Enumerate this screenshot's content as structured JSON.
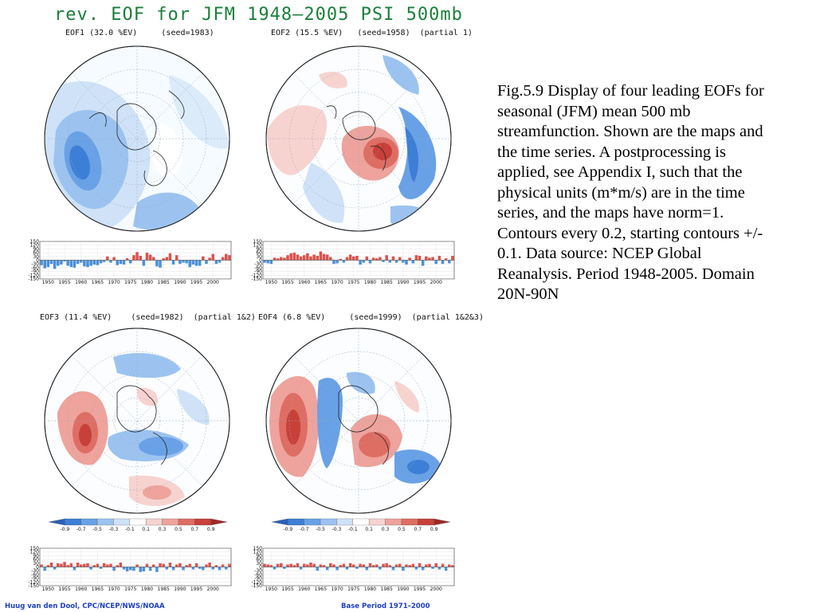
{
  "title": "rev. EOF for JFM 1948–2005 PSI 500mb",
  "caption": "Fig.5.9 Display of  four leading EOFs for seasonal (JFM) mean 500 mb streamfunction. Shown are the maps and the time series. A postprocessing is applied, see Appendix I, such that the physical units (m*m/s) are in the time series, and the maps have norm=1. Contours every 0.2, starting contours +/- 0.1. Data source: NCEP Global Reanalysis. Period 1948-2005. Domain 20N-90N",
  "footer": {
    "left": "Huug van den Dool, CPC/NCEP/NWS/NOAA",
    "right": "Base Period 1971–2000"
  },
  "colors": {
    "title": "#1a7f3a",
    "positive": "#d9534f",
    "negative": "#4a90d9",
    "footer": "#1c3fbf"
  },
  "colorbar": {
    "ticks": [
      "-0.9",
      "-0.7",
      "-0.5",
      "-0.3",
      "-0.1",
      "0.1",
      "0.3",
      "0.5",
      "0.7",
      "0.9"
    ],
    "colors": [
      "#2b5fb8",
      "#3d7fd6",
      "#69a1e6",
      "#9cc3f0",
      "#cfe2f8",
      "#ffffff",
      "#f7d3d0",
      "#eea39c",
      "#de6d63",
      "#c8403a",
      "#9e2a26"
    ]
  },
  "chart_data": [
    {
      "type": "bar",
      "panel": "EOF1",
      "title": "EOF1 (32.0 %EV)     (seed=1983)",
      "xlabel": "",
      "ylabel": "",
      "x_range": [
        1948,
        2005
      ],
      "ylim": [
        -150,
        150
      ],
      "yticks": [
        "150",
        "120",
        "90",
        "60",
        "30",
        "0",
        "-30",
        "-60",
        "-90",
        "-120",
        "-150"
      ],
      "xticks": [
        "1950",
        "1955",
        "1960",
        "1965",
        "1970",
        "1975",
        "1980",
        "1985",
        "1990",
        "1995",
        "2000"
      ],
      "values": [
        -40,
        -65,
        -55,
        -30,
        -70,
        -45,
        -35,
        -10,
        -45,
        -55,
        -60,
        -30,
        -20,
        -50,
        -55,
        -45,
        -35,
        -40,
        -25,
        -15,
        30,
        -20,
        25,
        -40,
        -30,
        -35,
        15,
        -25,
        40,
        65,
        35,
        -45,
        60,
        45,
        25,
        -50,
        -60,
        15,
        25,
        55,
        -35,
        40,
        -30,
        -20,
        -25,
        -55,
        -35,
        -45,
        -45,
        30,
        -30,
        20,
        50,
        -30,
        -20,
        25,
        50,
        40
      ]
    },
    {
      "type": "bar",
      "panel": "EOF2",
      "title": "EOF2 (15.5 %EV)   (seed=1958)  (partial 1)",
      "xlabel": "",
      "ylabel": "",
      "x_range": [
        1948,
        2005
      ],
      "ylim": [
        -150,
        150
      ],
      "yticks": [
        "150",
        "120",
        "90",
        "60",
        "30",
        "0",
        "-30",
        "-60",
        "-90",
        "-120",
        "-150"
      ],
      "xticks": [
        "1950",
        "1955",
        "1960",
        "1965",
        "1970",
        "1975",
        "1980",
        "1985",
        "1990",
        "1995",
        "2000"
      ],
      "values": [
        -20,
        -25,
        -30,
        20,
        15,
        25,
        20,
        40,
        55,
        60,
        45,
        30,
        40,
        55,
        30,
        45,
        35,
        70,
        50,
        45,
        25,
        -30,
        -25,
        10,
        -20,
        25,
        45,
        30,
        35,
        -35,
        -20,
        30,
        -25,
        20,
        15,
        25,
        -15,
        40,
        -20,
        30,
        -20,
        25,
        -20,
        -35,
        20,
        -25,
        40,
        35,
        -45,
        30,
        20,
        25,
        -30,
        35,
        -30,
        15,
        -25,
        35
      ]
    },
    {
      "type": "bar",
      "panel": "EOF3",
      "title": "EOF3 (11.4 %EV)    (seed=1982)  (partial 1&2)",
      "xlabel": "",
      "ylabel": "",
      "x_range": [
        1948,
        2005
      ],
      "ylim": [
        -150,
        150
      ],
      "yticks": [
        "150",
        "120",
        "90",
        "60",
        "30",
        "0",
        "-30",
        "-60",
        "-90",
        "-120",
        "-150"
      ],
      "xticks": [
        "1950",
        "1955",
        "1960",
        "1965",
        "1970",
        "1975",
        "1980",
        "1985",
        "1990",
        "1995",
        "2000"
      ],
      "values": [
        20,
        -30,
        15,
        35,
        -20,
        30,
        25,
        40,
        15,
        30,
        -25,
        35,
        20,
        25,
        30,
        -20,
        15,
        25,
        -15,
        30,
        20,
        25,
        -30,
        15,
        35,
        -20,
        -35,
        -25,
        -30,
        20,
        -40,
        -35,
        25,
        -30,
        20,
        -40,
        30,
        25,
        -20,
        35,
        -25,
        20,
        30,
        -25,
        15,
        25,
        -20,
        30,
        -15,
        -25,
        20,
        35,
        -20,
        15,
        -25,
        20,
        -20,
        25
      ]
    },
    {
      "type": "bar",
      "panel": "EOF4",
      "title": "EOF4 (6.8 %EV)     (seed=1999)  (partial 1&2&3)",
      "xlabel": "",
      "ylabel": "",
      "x_range": [
        1948,
        2005
      ],
      "ylim": [
        -150,
        150
      ],
      "yticks": [
        "150",
        "120",
        "90",
        "60",
        "30",
        "0",
        "-30",
        "-60",
        "-90",
        "-120",
        "-150"
      ],
      "xticks": [
        "1950",
        "1955",
        "1960",
        "1965",
        "1970",
        "1975",
        "1980",
        "1985",
        "1990",
        "1995",
        "2000"
      ],
      "values": [
        25,
        20,
        15,
        -20,
        25,
        30,
        -15,
        20,
        25,
        15,
        30,
        -20,
        25,
        20,
        35,
        25,
        -30,
        20,
        15,
        -25,
        30,
        20,
        -25,
        15,
        25,
        -20,
        30,
        20,
        -15,
        25,
        20,
        -25,
        30,
        15,
        20,
        -20,
        25,
        30,
        15,
        -25,
        20,
        25,
        -30,
        20,
        15,
        25,
        -20,
        30,
        -25,
        20,
        25,
        -15,
        30,
        -20,
        25,
        -30,
        20,
        15
      ]
    }
  ]
}
